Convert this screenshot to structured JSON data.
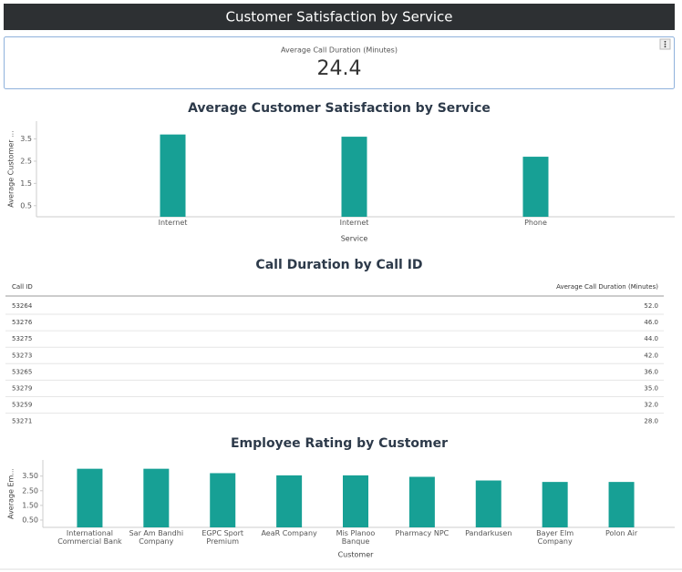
{
  "header": {
    "title": "Customer Satisfaction by Service"
  },
  "kpi": {
    "label": "Average Call Duration (Minutes)",
    "value": 24.4
  },
  "chart_data": [
    {
      "type": "bar",
      "title": "Average Customer Satisfaction by Service",
      "x_label": "Service",
      "y_label": "Average Customer ...",
      "categories": [
        "Internet",
        "Internet",
        "Phone"
      ],
      "values": [
        3.7,
        3.6,
        2.7
      ],
      "color": "#17a095",
      "ylim": [
        0,
        4.3
      ],
      "yticks": [
        0.5,
        1.5,
        2.5,
        3.5
      ]
    },
    {
      "type": "bar",
      "title": "Employee Rating by Customer",
      "x_label": "Customer",
      "y_label": "Average Em...",
      "categories": [
        "International Commercial Bank",
        "Sar Am Bandhi Company",
        "EGPC Sport Premium",
        "AeaR Company",
        "Mis Planoo Banque",
        "Pharmacy NPC",
        "Pandarkusen",
        "Bayer Elm Company",
        "Polon Air"
      ],
      "values": [
        4.0,
        4.0,
        3.7,
        3.55,
        3.55,
        3.45,
        3.2,
        3.1,
        3.1
      ],
      "color": "#17a095",
      "ylim": [
        0,
        4.6
      ],
      "yticks": [
        {
          "value": 0.5,
          "label": "0.50"
        },
        {
          "value": 1.5,
          "label": "1.50"
        },
        {
          "value": 2.5,
          "label": "2.50"
        },
        {
          "value": 3.5,
          "label": "3.50"
        }
      ]
    }
  ],
  "table": {
    "title": "Call Duration by Call ID",
    "columns": [
      "Call ID",
      "Average Call Duration (Minutes)"
    ],
    "rows": [
      [
        "53264",
        "52.0"
      ],
      [
        "53276",
        "46.0"
      ],
      [
        "53275",
        "44.0"
      ],
      [
        "53273",
        "42.0"
      ],
      [
        "53265",
        "36.0"
      ],
      [
        "53279",
        "35.0"
      ],
      [
        "53259",
        "32.0"
      ],
      [
        "53271",
        "28.0"
      ]
    ]
  }
}
